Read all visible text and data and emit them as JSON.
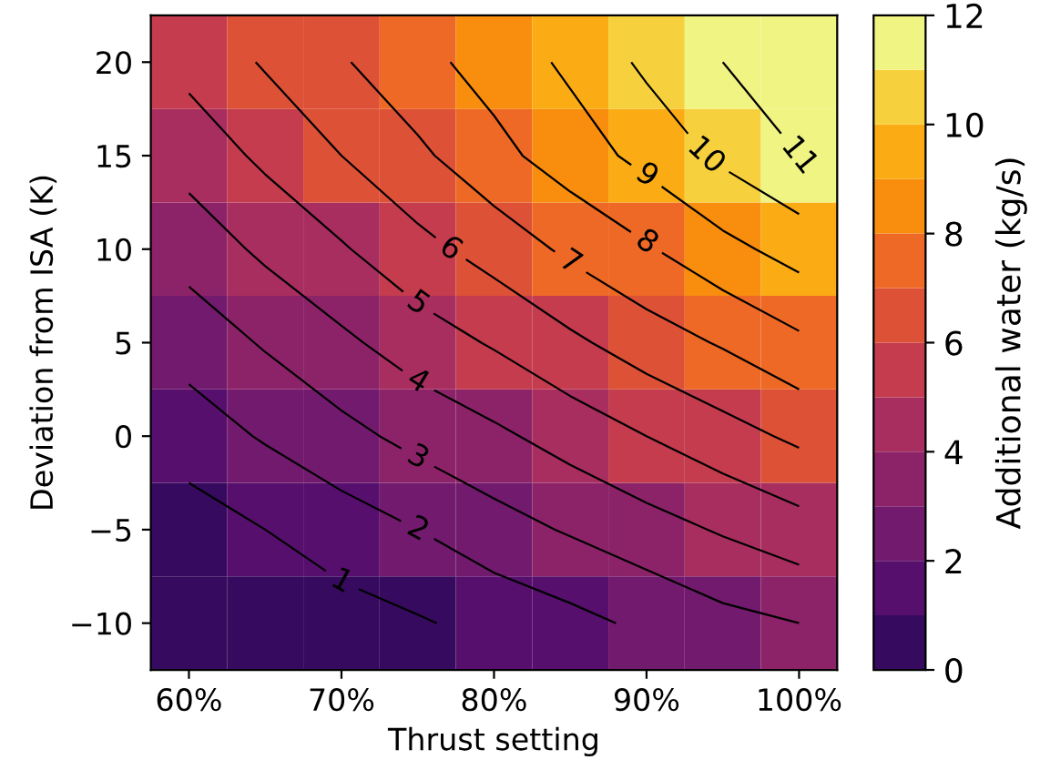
{
  "chart_data": {
    "type": "heatmap",
    "xlabel": "Thrust setting",
    "ylabel": "Deviation from ISA (K)",
    "clabel": "Additional water (kg/s)",
    "categories": [
      "60%",
      null,
      "70%",
      null,
      "80%",
      null,
      "90%",
      null,
      "100%"
    ],
    "y_categories": [
      "20",
      "15",
      "10",
      "5",
      "0",
      "−5",
      "−10"
    ],
    "cells": [
      [
        5.3,
        6.1,
        6.9,
        7.7,
        8.4,
        9.2,
        10.2,
        11.0,
        11.8
      ],
      [
        4.4,
        5.2,
        6.0,
        6.8,
        7.7,
        8.5,
        9.3,
        10.2,
        11.0
      ],
      [
        3.4,
        4.2,
        4.9,
        5.7,
        6.4,
        7.2,
        7.9,
        8.7,
        9.4
      ],
      [
        2.4,
        3.1,
        3.8,
        4.5,
        5.1,
        5.8,
        6.5,
        7.1,
        7.8
      ],
      [
        1.5,
        2.1,
        2.7,
        3.3,
        3.8,
        4.4,
        5.0,
        5.6,
        6.2
      ],
      [
        0.5,
        1.0,
        1.5,
        2.0,
        2.6,
        3.1,
        3.6,
        4.1,
        4.6
      ],
      [
        0.1,
        0.4,
        0.6,
        0.9,
        1.3,
        1.7,
        2.2,
        2.7,
        3.0
      ]
    ],
    "colors": [
      "#360a5e",
      "#560f6d",
      "#721a6e",
      "#8c2369",
      "#a82e5f",
      "#c43c4e",
      "#dd5137",
      "#ee6925",
      "#f88d0e",
      "#fbac15",
      "#f7d13d",
      "#f0f483"
    ],
    "clim": [
      0,
      12
    ],
    "cticks": [
      0,
      2,
      4,
      6,
      8,
      10,
      12
    ],
    "annotations": [
      "1",
      "2",
      "3",
      "4",
      "5",
      "6",
      "7",
      "8",
      "9",
      "10",
      "11"
    ]
  }
}
